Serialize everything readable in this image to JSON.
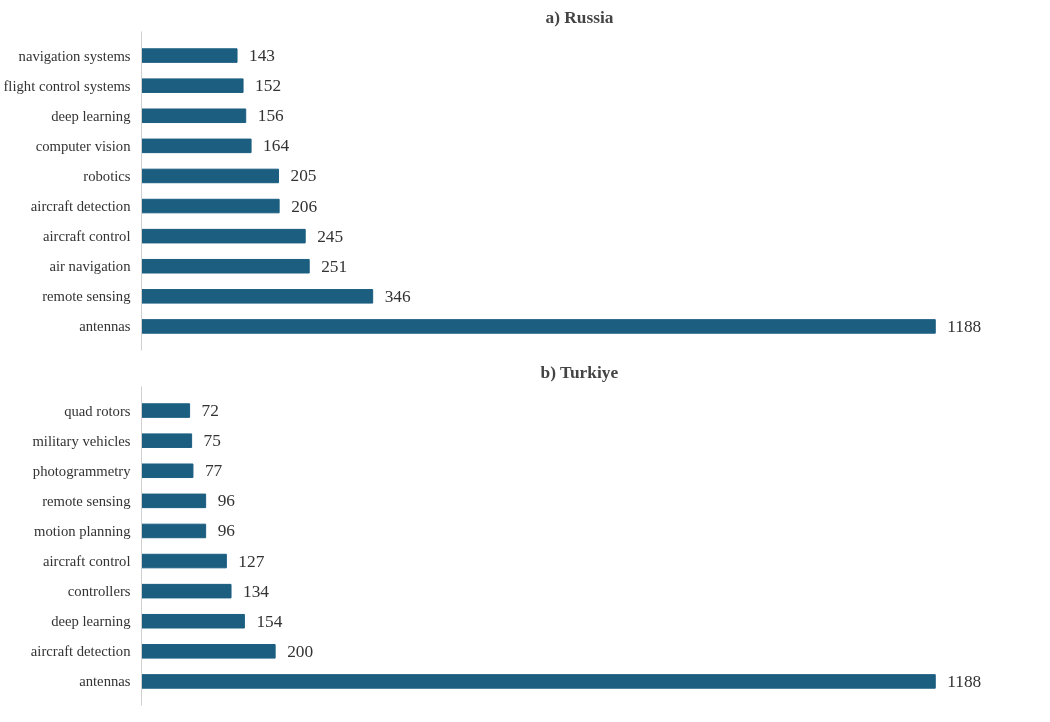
{
  "chart_data": [
    {
      "type": "bar",
      "orientation": "horizontal",
      "title": "a)    Russia",
      "categories": [
        "navigation systems",
        "flight control systems",
        "deep learning",
        "computer vision",
        "robotics",
        "aircraft detection",
        "aircraft control",
        "air navigation",
        "remote sensing",
        "antennas"
      ],
      "series": [
        {
          "color": "#1b5e80",
          "values": [
            143,
            152,
            156,
            164,
            205,
            206,
            245,
            251,
            346,
            1188
          ]
        }
      ],
      "data_labels": true,
      "tick_labels": "y"
    },
    {
      "type": "bar",
      "orientation": "horizontal",
      "title": "b)    Turkiye",
      "categories": [
        "quad rotors",
        "military vehicles",
        "photogrammetry",
        "remote sensing",
        "motion planning",
        "aircraft control",
        "controllers",
        "deep learning",
        "aircraft detection",
        "antennas"
      ],
      "series": [
        {
          "color": "#1b5e80",
          "values": [
            72,
            75,
            77,
            96,
            96,
            127,
            134,
            154,
            200,
            1188
          ]
        }
      ],
      "data_labels": true,
      "tick_labels": "y"
    }
  ]
}
